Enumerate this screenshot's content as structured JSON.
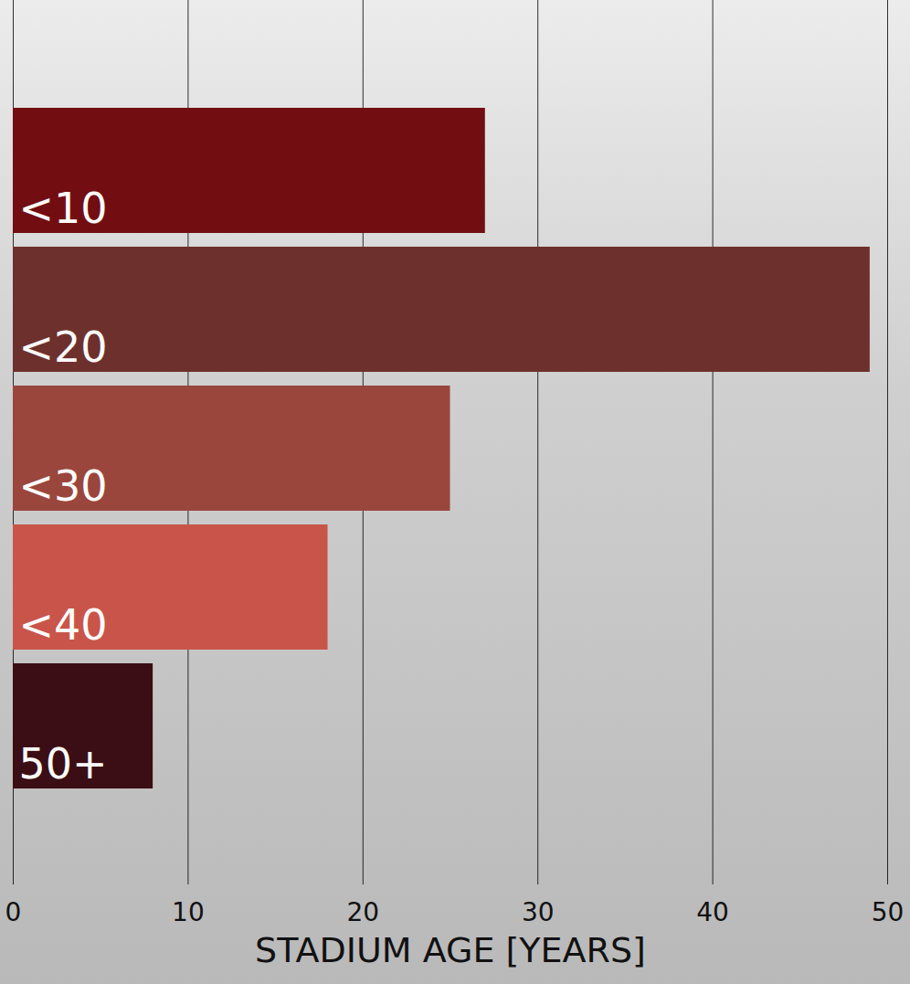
{
  "chart_data": {
    "type": "bar",
    "orientation": "horizontal",
    "categories": [
      "<10",
      "<20",
      "<30",
      "<40",
      "50+"
    ],
    "values": [
      27,
      49,
      25,
      18,
      8
    ],
    "colors": [
      "#720e12",
      "#6e302d",
      "#9a463d",
      "#c9554a",
      "#3a0e14"
    ],
    "x_label": "STADIUM AGE [YEARS]",
    "xlim": [
      0,
      50
    ],
    "xticks": [
      0,
      10,
      20,
      30,
      40,
      50
    ],
    "grid": true,
    "tick_labels": "x"
  }
}
